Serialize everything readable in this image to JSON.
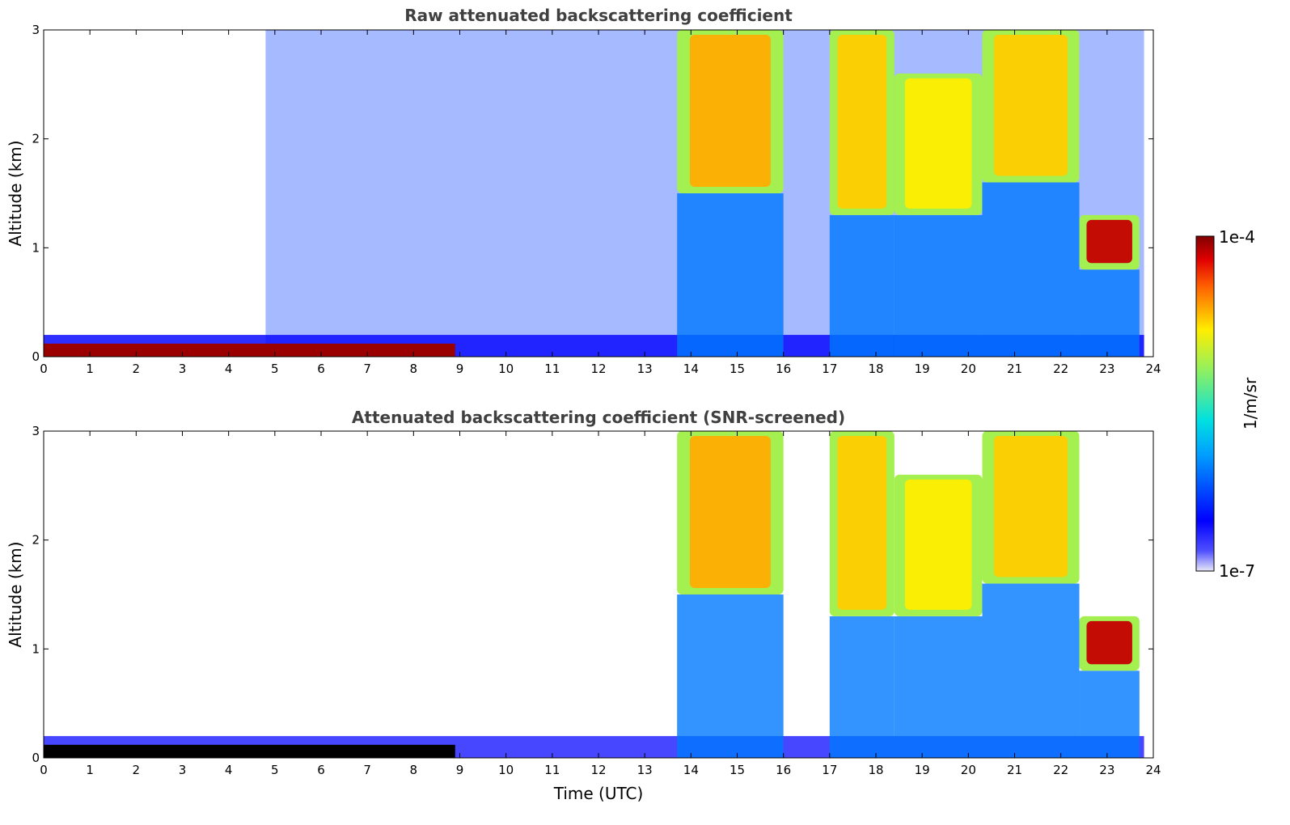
{
  "chart_data": [
    {
      "type": "heatmap",
      "id": "raw",
      "title": "Raw attenuated backscattering coefficient",
      "xlabel": "",
      "ylabel": "Altitude (km)",
      "xlim": [
        0,
        24
      ],
      "ylim": [
        0,
        3
      ],
      "xticks": [
        "0",
        "1",
        "2",
        "3",
        "4",
        "5",
        "6",
        "7",
        "8",
        "9",
        "10",
        "11",
        "12",
        "13",
        "14",
        "15",
        "16",
        "17",
        "18",
        "19",
        "20",
        "21",
        "22",
        "23",
        "24"
      ],
      "yticks": [
        "0",
        "1",
        "2",
        "3"
      ],
      "features": [
        {
          "kind": "surface_layer",
          "t0": 0,
          "t1": 8.9,
          "top_km": 0.12,
          "level": 0.98
        },
        {
          "kind": "cloud",
          "t0": 13.7,
          "t1": 16.0,
          "base_km": 1.5,
          "top_km": 3.0,
          "level": 0.78
        },
        {
          "kind": "cloud",
          "t0": 17.0,
          "t1": 18.4,
          "base_km": 1.3,
          "top_km": 3.0,
          "level": 0.75
        },
        {
          "kind": "cloud",
          "t0": 18.4,
          "t1": 20.3,
          "base_km": 1.3,
          "top_km": 2.6,
          "level": 0.72
        },
        {
          "kind": "cloud",
          "t0": 20.3,
          "t1": 22.4,
          "base_km": 1.6,
          "top_km": 3.0,
          "level": 0.75
        },
        {
          "kind": "cloud",
          "t0": 22.4,
          "t1": 23.7,
          "base_km": 0.8,
          "top_km": 1.3,
          "level": 0.95
        }
      ]
    },
    {
      "type": "heatmap",
      "id": "screened",
      "title": "Attenuated backscattering coefficient (SNR-screened)",
      "xlabel": "Time (UTC)",
      "ylabel": "Altitude (km)",
      "xlim": [
        0,
        24
      ],
      "ylim": [
        0,
        3
      ],
      "xticks": [
        "0",
        "1",
        "2",
        "3",
        "4",
        "5",
        "6",
        "7",
        "8",
        "9",
        "10",
        "11",
        "12",
        "13",
        "14",
        "15",
        "16",
        "17",
        "18",
        "19",
        "20",
        "21",
        "22",
        "23",
        "24"
      ],
      "yticks": [
        "0",
        "1",
        "2",
        "3"
      ],
      "features": [
        {
          "kind": "surface_layer",
          "t0": 0,
          "t1": 8.9,
          "top_km": 0.12,
          "level": 0.98
        },
        {
          "kind": "cloud",
          "t0": 13.7,
          "t1": 16.0,
          "base_km": 1.5,
          "top_km": 3.0,
          "level": 0.78
        },
        {
          "kind": "cloud",
          "t0": 17.0,
          "t1": 18.4,
          "base_km": 1.3,
          "top_km": 3.0,
          "level": 0.75
        },
        {
          "kind": "cloud",
          "t0": 18.4,
          "t1": 20.3,
          "base_km": 1.3,
          "top_km": 2.6,
          "level": 0.72
        },
        {
          "kind": "cloud",
          "t0": 20.3,
          "t1": 22.4,
          "base_km": 1.6,
          "top_km": 3.0,
          "level": 0.75
        },
        {
          "kind": "cloud",
          "t0": 22.4,
          "t1": 23.7,
          "base_km": 0.8,
          "top_km": 1.3,
          "level": 0.95
        }
      ]
    }
  ],
  "colorbar": {
    "min_label": "1e-7",
    "max_label": "1e-4",
    "unit_label": "1/m/sr",
    "colormap": "jet"
  }
}
